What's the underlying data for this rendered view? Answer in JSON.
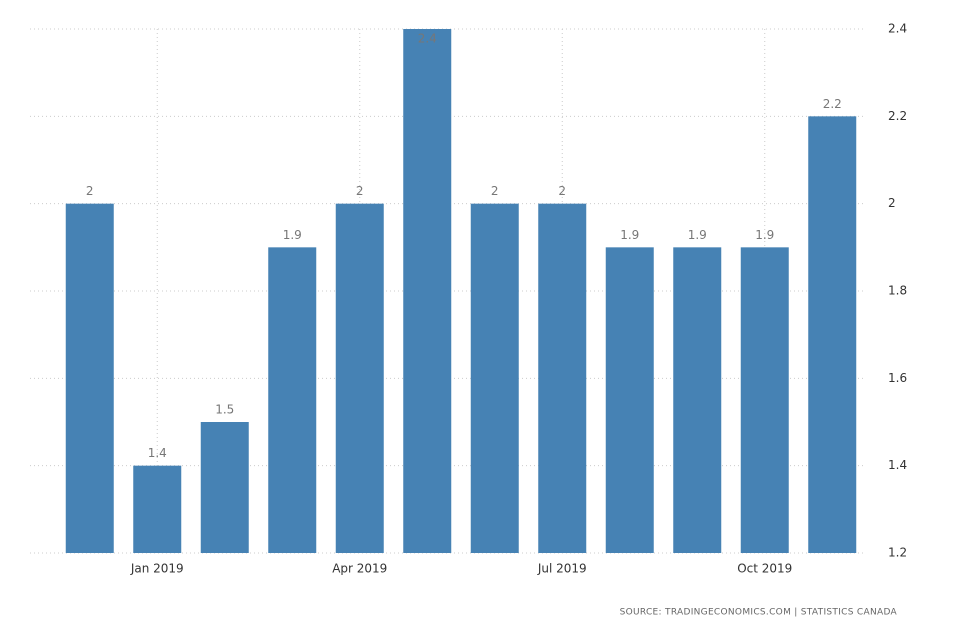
{
  "chart_data": {
    "type": "bar",
    "categories": [
      null,
      "Jan 2019",
      null,
      null,
      "Apr 2019",
      null,
      null,
      "Jul 2019",
      null,
      null,
      "Oct 2019",
      null
    ],
    "values": [
      2,
      1.4,
      1.5,
      1.9,
      2,
      2.4,
      2,
      2,
      1.9,
      1.9,
      1.9,
      2.2
    ],
    "color": "#4682b4",
    "ylim": [
      1.2,
      2.4
    ],
    "yticks": [
      1.2,
      1.4,
      1.6,
      1.8,
      2,
      2.2,
      2.4
    ],
    "grid": true,
    "source": "SOURCE: TRADINGECONOMICS.COM | STATISTICS CANADA"
  }
}
